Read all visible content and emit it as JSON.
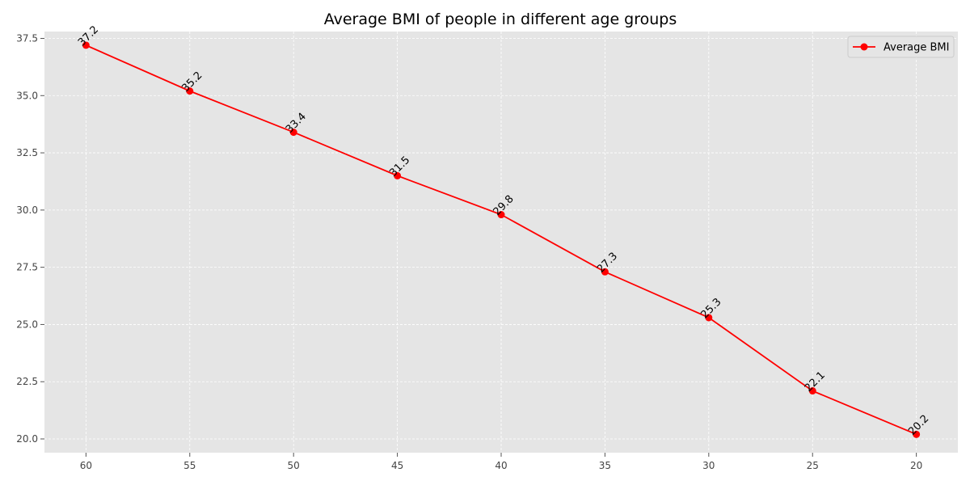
{
  "chart_data": {
    "type": "line",
    "title": "Average BMI of people in different age groups",
    "xlabel": "",
    "ylabel": "",
    "x": [
      60,
      55,
      50,
      45,
      40,
      35,
      30,
      25,
      20
    ],
    "x_tick_labels": [
      "60",
      "55",
      "50",
      "45",
      "40",
      "35",
      "30",
      "25",
      "20"
    ],
    "x_reversed": true,
    "xlim": [
      62,
      18
    ],
    "ylim": [
      19.4,
      37.8
    ],
    "y_ticks": [
      20.0,
      22.5,
      25.0,
      27.5,
      30.0,
      32.5,
      35.0,
      37.5
    ],
    "y_tick_labels": [
      "20.0",
      "22.5",
      "25.0",
      "27.5",
      "30.0",
      "32.5",
      "35.0",
      "37.5"
    ],
    "series": [
      {
        "name": "Average BMI",
        "color": "#ff0000",
        "marker": "circle",
        "values": [
          37.2,
          35.2,
          33.4,
          31.5,
          29.8,
          27.3,
          25.3,
          22.1,
          20.2
        ],
        "data_labels": [
          "37.2",
          "35.2",
          "33.4",
          "31.5",
          "29.8",
          "27.3",
          "25.3",
          "22.1",
          "20.2"
        ]
      }
    ],
    "grid": true,
    "legend_position": "top-right",
    "background_color": "#e5e5e5",
    "grid_color": "#ffffff"
  }
}
